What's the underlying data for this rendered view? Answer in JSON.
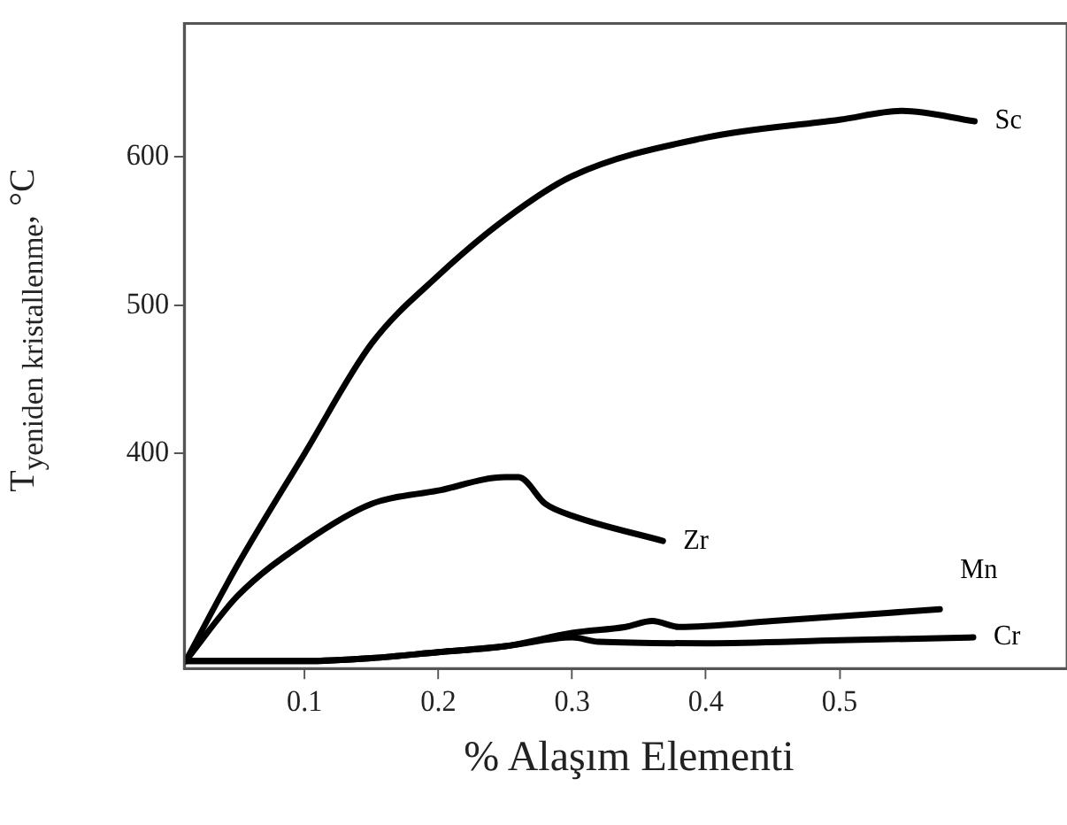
{
  "chart_data": {
    "type": "line",
    "xlabel": "% Alaşım Elementi",
    "ylabel": "T$_{yeniden kristallenme}$, °C",
    "xlim": [
      0.01,
      0.67
    ],
    "xticks": [
      0.1,
      0.2,
      0.3,
      0.4,
      0.5
    ],
    "ylim": [
      255,
      690
    ],
    "yticks": [
      400,
      500,
      600
    ],
    "grid": false,
    "legend": false,
    "marker": "none",
    "line_style": "solid",
    "series": [
      {
        "name": "Sc",
        "color": "#000000",
        "x": [
          0.011,
          0.05,
          0.1,
          0.15,
          0.2,
          0.25,
          0.3,
          0.4,
          0.5,
          0.547,
          0.601
        ],
        "values": [
          260,
          325,
          400,
          474,
          520,
          558,
          587,
          613,
          625,
          631,
          624
        ]
      },
      {
        "name": "Zr",
        "color": "#000000",
        "x": [
          0.011,
          0.05,
          0.1,
          0.15,
          0.2,
          0.25,
          0.26,
          0.28,
          0.3,
          0.368
        ],
        "values": [
          260,
          304,
          340,
          366,
          375,
          384,
          384,
          366,
          358,
          341
        ]
      },
      {
        "name": "Mn",
        "color": "#000000",
        "x": [
          0.011,
          0.1,
          0.15,
          0.2,
          0.25,
          0.3,
          0.34,
          0.36,
          0.38,
          0.45,
          0.575
        ],
        "values": [
          260,
          260,
          262,
          266,
          270,
          279,
          283,
          287,
          283,
          287,
          295
        ]
      },
      {
        "name": "Cr",
        "color": "#000000",
        "x": [
          0.011,
          0.1,
          0.15,
          0.2,
          0.25,
          0.3,
          0.32,
          0.4,
          0.5,
          0.6
        ],
        "values": [
          260,
          260,
          262,
          266,
          270,
          276,
          273,
          272,
          274,
          276
        ]
      }
    ]
  }
}
